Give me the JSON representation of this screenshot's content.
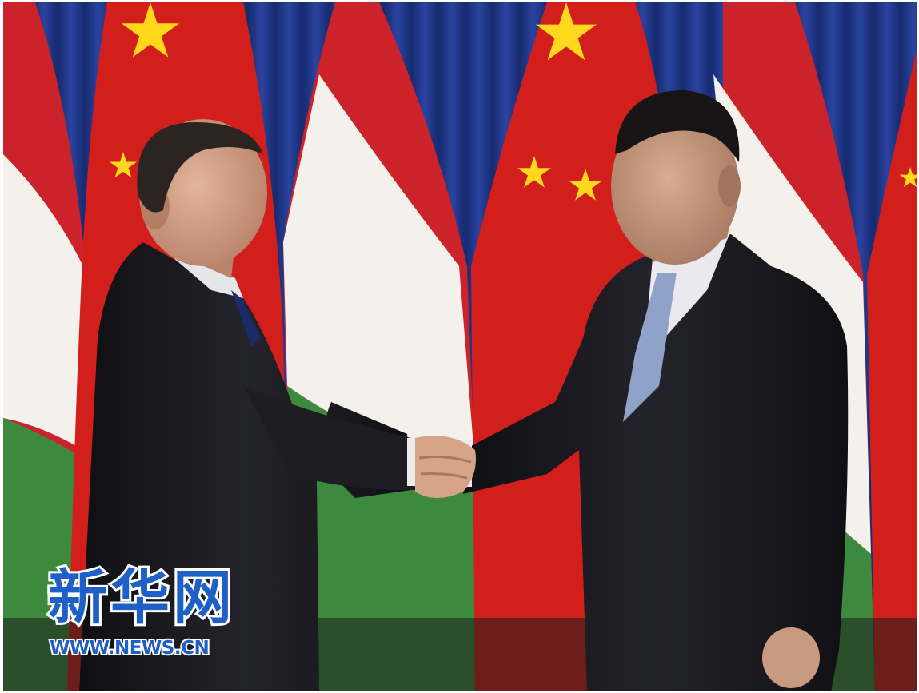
{
  "watermark": {
    "brand": "新华网",
    "url": "WWW.NEWS.CN",
    "color": "#1e5fc8"
  },
  "colors": {
    "curtain": "#1f3585",
    "china_red": "#d21f1c",
    "china_star": "#ffd71c",
    "hungary_red": "#cc2229",
    "hungary_white": "#f4f1ec",
    "hungary_green": "#3d8a3e",
    "suit": "#18181d",
    "skin": "#c99a7e"
  }
}
